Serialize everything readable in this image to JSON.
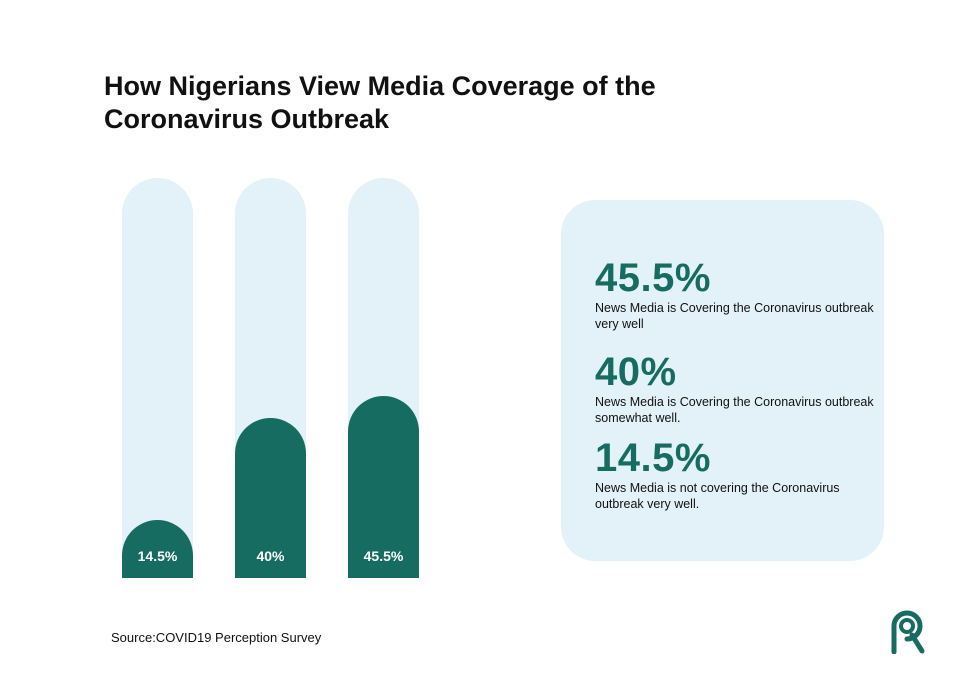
{
  "title": "How Nigerians View Media Coverage of the Coronavirus Outbreak",
  "colors": {
    "bar_fill": "#176c62",
    "bar_track": "#e3f1f8",
    "card_bg": "#e3f1f8",
    "accent_text": "#176c62"
  },
  "chart_data": {
    "type": "bar",
    "categories": [
      "",
      "",
      ""
    ],
    "values": [
      14.5,
      40,
      45.5
    ],
    "value_labels": [
      "14.5%",
      "40%",
      "45.5%"
    ],
    "ylim": [
      0,
      100
    ],
    "grid": false
  },
  "stats": [
    {
      "value": "45.5%",
      "text": "News Media is Covering the Coronavirus outbreak very well"
    },
    {
      "value": "40%",
      "text": "News Media is Covering the Coronavirus outbreak somewhat well."
    },
    {
      "value": "14.5%",
      "text": "News Media is not covering the Coronavirus outbreak very well."
    }
  ],
  "source": "Source:COVID19 Perception Survey",
  "logo": {
    "icon": "magnifier-r-logo-icon"
  }
}
